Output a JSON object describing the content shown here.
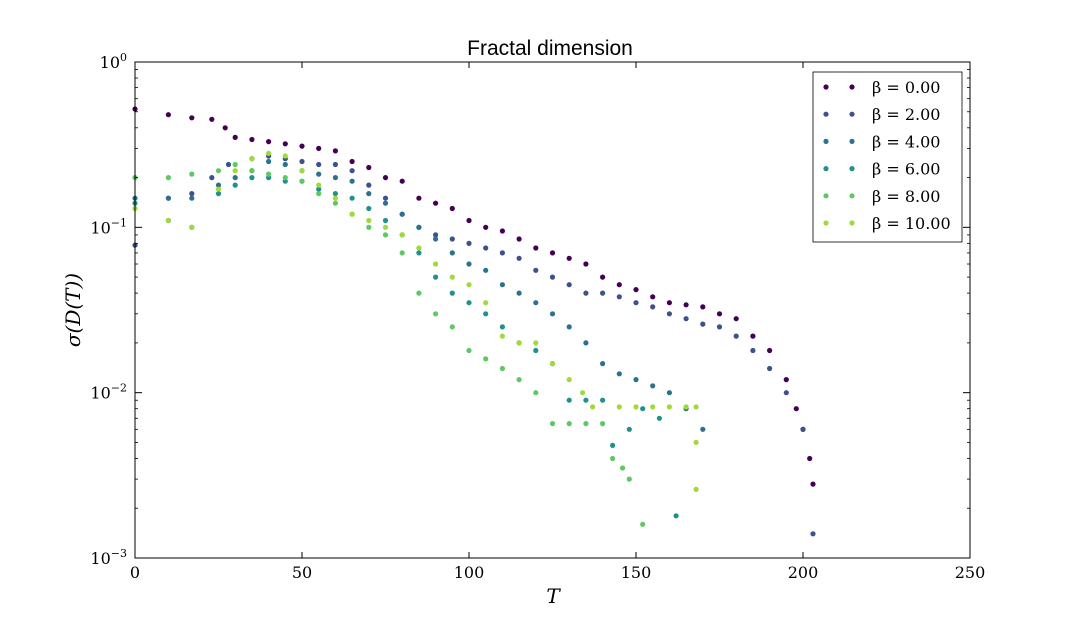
{
  "chart_data": {
    "type": "scatter",
    "title": "Fractal dimension",
    "xlabel": "T",
    "ylabel": "σ(D(T))",
    "xlim": [
      0,
      250
    ],
    "ylim": [
      0.001,
      1
    ],
    "yscale": "log",
    "x_ticks": [
      0,
      50,
      100,
      150,
      200,
      250
    ],
    "x_tick_labels": [
      "0",
      "50",
      "100",
      "150",
      "200",
      "250"
    ],
    "y_ticks": [
      0.001,
      0.01,
      0.1,
      1
    ],
    "y_tick_labels": [
      {
        "base": "10",
        "exp": "−3"
      },
      {
        "base": "10",
        "exp": "−2"
      },
      {
        "base": "10",
        "exp": "−1"
      },
      {
        "base": "10",
        "exp": "0"
      }
    ],
    "grid": false,
    "legend_position": "top-right",
    "series": [
      {
        "name": "β = 0.00",
        "color": "#440154",
        "points": [
          [
            0,
            0.52
          ],
          [
            10,
            0.48
          ],
          [
            17,
            0.46
          ],
          [
            23,
            0.45
          ],
          [
            27,
            0.4
          ],
          [
            30,
            0.35
          ],
          [
            35,
            0.34
          ],
          [
            40,
            0.33
          ],
          [
            45,
            0.32
          ],
          [
            50,
            0.31
          ],
          [
            55,
            0.3
          ],
          [
            60,
            0.29
          ],
          [
            65,
            0.25
          ],
          [
            70,
            0.23
          ],
          [
            75,
            0.2
          ],
          [
            80,
            0.19
          ],
          [
            85,
            0.15
          ],
          [
            90,
            0.14
          ],
          [
            95,
            0.13
          ],
          [
            100,
            0.11
          ],
          [
            105,
            0.1
          ],
          [
            110,
            0.095
          ],
          [
            115,
            0.085
          ],
          [
            120,
            0.075
          ],
          [
            125,
            0.07
          ],
          [
            130,
            0.065
          ],
          [
            135,
            0.06
          ],
          [
            140,
            0.05
          ],
          [
            145,
            0.045
          ],
          [
            150,
            0.042
          ],
          [
            155,
            0.038
          ],
          [
            160,
            0.035
          ],
          [
            165,
            0.034
          ],
          [
            170,
            0.033
          ],
          [
            175,
            0.03
          ],
          [
            180,
            0.028
          ],
          [
            185,
            0.022
          ],
          [
            190,
            0.018
          ],
          [
            195,
            0.012
          ],
          [
            198,
            0.008
          ],
          [
            200,
            0.006
          ],
          [
            202,
            0.004
          ],
          [
            203,
            0.0028
          ]
        ]
      },
      {
        "name": "β = 2.00",
        "color": "#3b528b",
        "points": [
          [
            0,
            0.078
          ],
          [
            10,
            0.15
          ],
          [
            17,
            0.16
          ],
          [
            23,
            0.2
          ],
          [
            28,
            0.24
          ],
          [
            35,
            0.26
          ],
          [
            40,
            0.27
          ],
          [
            45,
            0.26
          ],
          [
            50,
            0.25
          ],
          [
            55,
            0.24
          ],
          [
            60,
            0.24
          ],
          [
            65,
            0.22
          ],
          [
            70,
            0.18
          ],
          [
            75,
            0.15
          ],
          [
            80,
            0.12
          ],
          [
            85,
            0.1
          ],
          [
            90,
            0.09
          ],
          [
            95,
            0.085
          ],
          [
            100,
            0.08
          ],
          [
            105,
            0.075
          ],
          [
            110,
            0.07
          ],
          [
            115,
            0.065
          ],
          [
            120,
            0.055
          ],
          [
            125,
            0.05
          ],
          [
            130,
            0.045
          ],
          [
            135,
            0.04
          ],
          [
            140,
            0.04
          ],
          [
            145,
            0.038
          ],
          [
            150,
            0.035
          ],
          [
            155,
            0.033
          ],
          [
            160,
            0.03
          ],
          [
            165,
            0.028
          ],
          [
            170,
            0.026
          ],
          [
            175,
            0.025
          ],
          [
            180,
            0.022
          ],
          [
            185,
            0.018
          ],
          [
            190,
            0.014
          ],
          [
            195,
            0.01
          ],
          [
            200,
            0.006
          ],
          [
            203,
            0.0014
          ]
        ]
      },
      {
        "name": "β = 4.00",
        "color": "#2c728e",
        "points": [
          [
            0,
            0.15
          ],
          [
            10,
            0.15
          ],
          [
            17,
            0.15
          ],
          [
            25,
            0.18
          ],
          [
            30,
            0.2
          ],
          [
            35,
            0.22
          ],
          [
            40,
            0.25
          ],
          [
            45,
            0.24
          ],
          [
            50,
            0.22
          ],
          [
            55,
            0.21
          ],
          [
            60,
            0.2
          ],
          [
            65,
            0.19
          ],
          [
            70,
            0.16
          ],
          [
            75,
            0.14
          ],
          [
            80,
            0.12
          ],
          [
            85,
            0.1
          ],
          [
            90,
            0.085
          ],
          [
            95,
            0.07
          ],
          [
            100,
            0.06
          ],
          [
            105,
            0.055
          ],
          [
            110,
            0.045
          ],
          [
            115,
            0.04
          ],
          [
            120,
            0.035
          ],
          [
            125,
            0.03
          ],
          [
            130,
            0.025
          ],
          [
            135,
            0.02
          ],
          [
            140,
            0.015
          ],
          [
            145,
            0.013
          ],
          [
            150,
            0.012
          ],
          [
            155,
            0.011
          ],
          [
            160,
            0.01
          ],
          [
            165,
            0.008
          ],
          [
            170,
            0.006
          ]
        ]
      },
      {
        "name": "β = 6.00",
        "color": "#21918c",
        "points": [
          [
            0,
            0.14
          ],
          [
            10,
            0.11
          ],
          [
            17,
            0.1
          ],
          [
            25,
            0.16
          ],
          [
            30,
            0.18
          ],
          [
            35,
            0.2
          ],
          [
            40,
            0.2
          ],
          [
            45,
            0.19
          ],
          [
            50,
            0.19
          ],
          [
            55,
            0.17
          ],
          [
            60,
            0.16
          ],
          [
            65,
            0.15
          ],
          [
            70,
            0.13
          ],
          [
            75,
            0.11
          ],
          [
            80,
            0.09
          ],
          [
            85,
            0.07
          ],
          [
            90,
            0.05
          ],
          [
            95,
            0.04
          ],
          [
            100,
            0.035
          ],
          [
            105,
            0.03
          ],
          [
            110,
            0.025
          ],
          [
            115,
            0.02
          ],
          [
            120,
            0.018
          ],
          [
            125,
            0.015
          ],
          [
            130,
            0.009
          ],
          [
            135,
            0.009
          ],
          [
            140,
            0.009
          ],
          [
            143,
            0.0048
          ],
          [
            148,
            0.006
          ],
          [
            152,
            0.008
          ],
          [
            157,
            0.007
          ],
          [
            162,
            0.0018
          ]
        ]
      },
      {
        "name": "β = 8.00",
        "color": "#5ec962",
        "points": [
          [
            0,
            0.2
          ],
          [
            10,
            0.2
          ],
          [
            17,
            0.21
          ],
          [
            25,
            0.22
          ],
          [
            30,
            0.24
          ],
          [
            35,
            0.22
          ],
          [
            40,
            0.21
          ],
          [
            45,
            0.2
          ],
          [
            50,
            0.19
          ],
          [
            55,
            0.16
          ],
          [
            60,
            0.14
          ],
          [
            65,
            0.12
          ],
          [
            70,
            0.1
          ],
          [
            75,
            0.09
          ],
          [
            80,
            0.07
          ],
          [
            85,
            0.04
          ],
          [
            90,
            0.03
          ],
          [
            95,
            0.025
          ],
          [
            100,
            0.018
          ],
          [
            105,
            0.016
          ],
          [
            110,
            0.014
          ],
          [
            115,
            0.012
          ],
          [
            120,
            0.01
          ],
          [
            125,
            0.0065
          ],
          [
            130,
            0.0065
          ],
          [
            135,
            0.0065
          ],
          [
            140,
            0.0065
          ],
          [
            143,
            0.004
          ],
          [
            146,
            0.0035
          ],
          [
            148,
            0.003
          ],
          [
            152,
            0.0016
          ]
        ]
      },
      {
        "name": "β = 10.00",
        "color": "#a0da39",
        "points": [
          [
            0,
            0.13
          ],
          [
            10,
            0.11
          ],
          [
            17,
            0.1
          ],
          [
            25,
            0.17
          ],
          [
            30,
            0.22
          ],
          [
            35,
            0.26
          ],
          [
            40,
            0.28
          ],
          [
            45,
            0.27
          ],
          [
            50,
            0.22
          ],
          [
            55,
            0.18
          ],
          [
            60,
            0.15
          ],
          [
            65,
            0.12
          ],
          [
            70,
            0.11
          ],
          [
            75,
            0.1
          ],
          [
            80,
            0.09
          ],
          [
            85,
            0.075
          ],
          [
            90,
            0.06
          ],
          [
            95,
            0.05
          ],
          [
            100,
            0.045
          ],
          [
            105,
            0.035
          ],
          [
            110,
            0.022
          ],
          [
            115,
            0.02
          ],
          [
            120,
            0.02
          ],
          [
            125,
            0.015
          ],
          [
            130,
            0.012
          ],
          [
            134,
            0.01
          ],
          [
            137,
            0.0082
          ],
          [
            145,
            0.0082
          ],
          [
            150,
            0.0082
          ],
          [
            155,
            0.0082
          ],
          [
            160,
            0.0082
          ],
          [
            165,
            0.0082
          ],
          [
            168,
            0.0082
          ],
          [
            168,
            0.005
          ],
          [
            168,
            0.0026
          ]
        ]
      }
    ]
  }
}
